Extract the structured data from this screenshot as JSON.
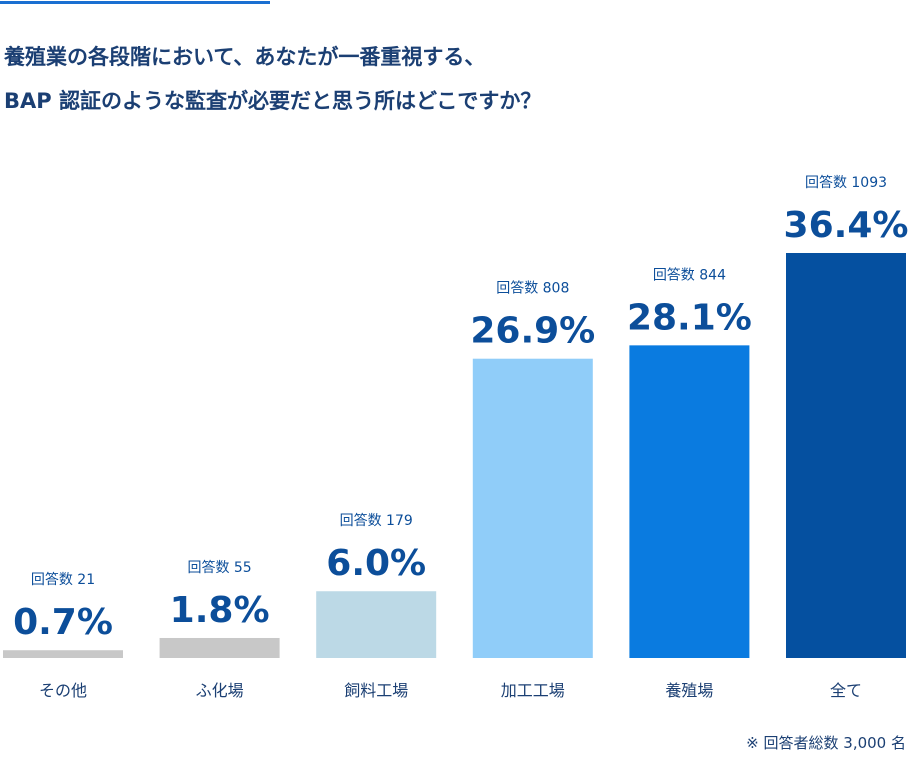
{
  "chart_data": {
    "type": "bar",
    "title": [
      "養殖業の各段階において、あなたが一番重視する、",
      "BAP 認証のような監査が必要だと思う所はどこですか？"
    ],
    "categories": [
      "その他",
      "ふ化場",
      "飼料工場",
      "加工工場",
      "養殖場",
      "全て"
    ],
    "values": [
      0.7,
      1.8,
      6.0,
      26.9,
      28.1,
      36.4
    ],
    "value_labels": [
      "0.7%",
      "1.8%",
      "6.0%",
      "26.9%",
      "28.1%",
      "36.4%"
    ],
    "count_labels": [
      "回答数 21",
      "回答数 55",
      "回答数 179",
      "回答数 808",
      "回答数 844",
      "回答数 1093"
    ],
    "colors": [
      "#c8c8c8",
      "#c8c8c8",
      "#bcd9e6",
      "#90cdf9",
      "#0a7be0",
      "#0550a0"
    ],
    "note": "※ 回答者総数 3,000 名"
  }
}
